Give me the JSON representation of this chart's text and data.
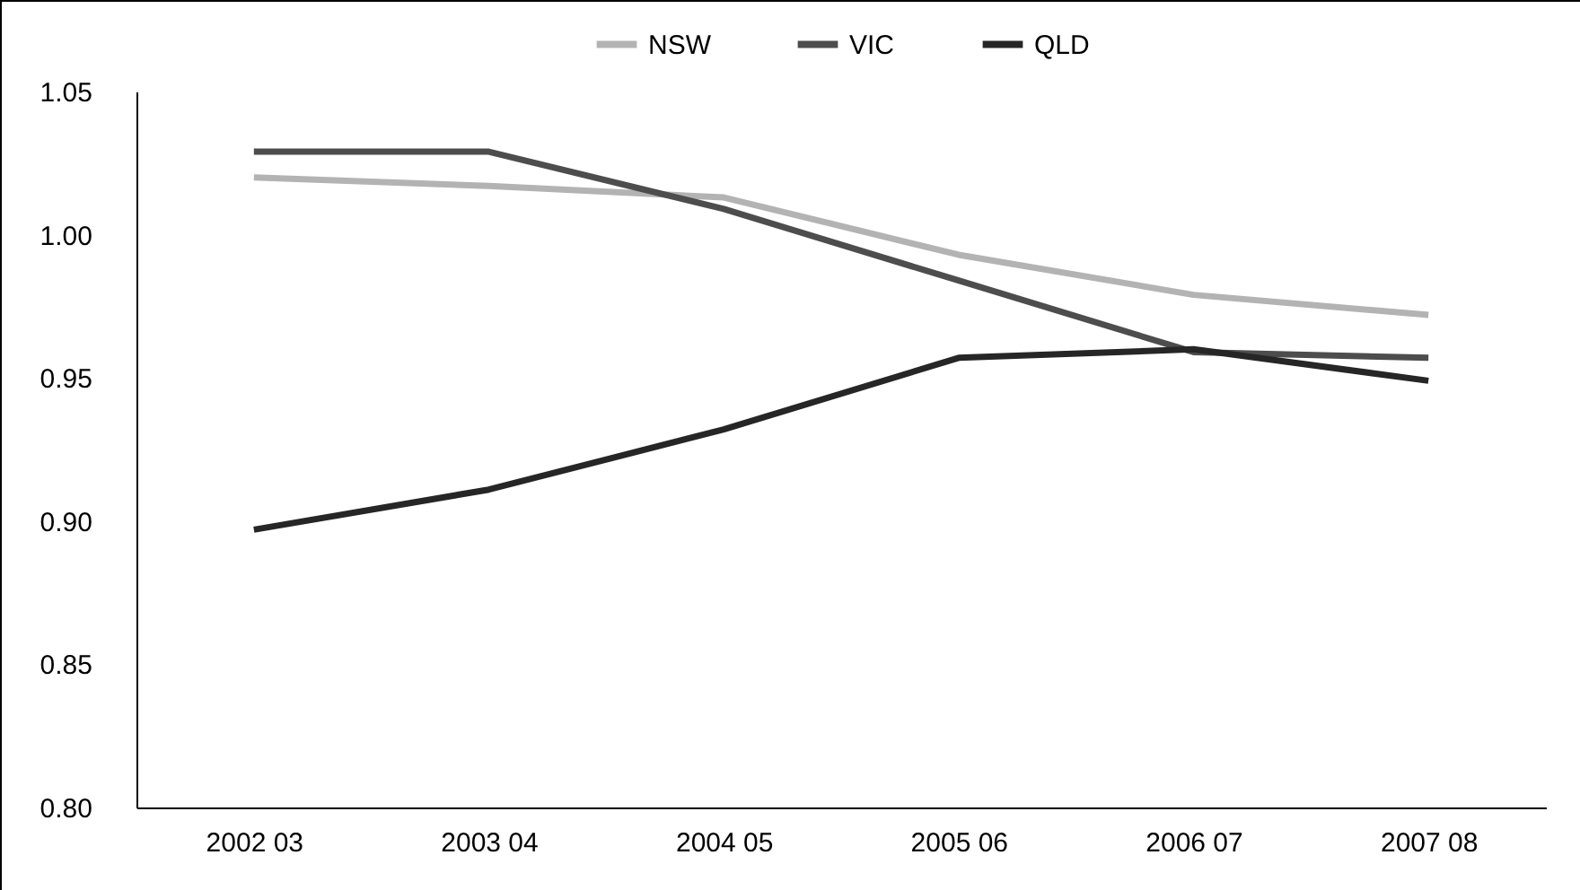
{
  "chart_data": {
    "type": "line",
    "categories": [
      "2002 03",
      "2003 04",
      "2004 05",
      "2005 06",
      "2006 07",
      "2007 08"
    ],
    "series": [
      {
        "name": "NSW",
        "color": "#b3b3b3",
        "values": [
          1.02,
          1.017,
          1.013,
          0.993,
          0.979,
          0.972
        ]
      },
      {
        "name": "VIC",
        "color": "#4d4d4d",
        "values": [
          1.029,
          1.029,
          1.009,
          0.984,
          0.959,
          0.957
        ]
      },
      {
        "name": "QLD",
        "color": "#262626",
        "values": [
          0.897,
          0.911,
          0.932,
          0.957,
          0.96,
          0.949
        ]
      }
    ],
    "ylim": [
      0.8,
      1.05
    ],
    "yticks": [
      {
        "value": 0.8,
        "label": "0.80"
      },
      {
        "value": 0.85,
        "label": "0.85"
      },
      {
        "value": 0.9,
        "label": "0.90"
      },
      {
        "value": 0.95,
        "label": "0.95"
      },
      {
        "value": 1.0,
        "label": "1.00"
      },
      {
        "value": 1.05,
        "label": "1.05"
      }
    ],
    "grid": false,
    "legend": "top",
    "marker": "none",
    "line_style": "solid"
  }
}
